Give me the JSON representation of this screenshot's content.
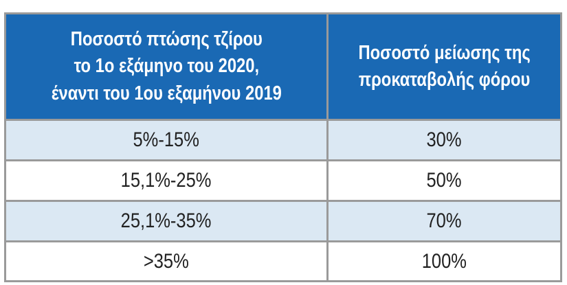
{
  "table": {
    "headers": [
      "Ποσοστό πτώσης τζίρου\nτο 1ο εξάμηνο του 2020,\nέναντι του 1ου εξαμήνου 2019",
      "Ποσοστό μείωσης  της\nπροκαταβολής φόρου"
    ],
    "rows": [
      {
        "drop_range": "5%-15%",
        "reduction": "30%"
      },
      {
        "drop_range": "15,1%-25%",
        "reduction": "50%"
      },
      {
        "drop_range": "25,1%-35%",
        "reduction": "70%"
      },
      {
        "drop_range": ">35%",
        "reduction": "100%"
      }
    ]
  },
  "colors": {
    "header_bg": "#1a69b4",
    "header_text": "#ffffff",
    "shaded_row": "#dbe8f3",
    "plain_row": "#ffffff",
    "grid_lines": "#9a9a9a"
  }
}
